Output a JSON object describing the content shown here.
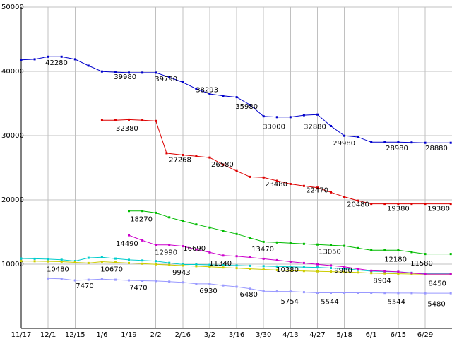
{
  "page": {
    "background": "#ffffff"
  },
  "chart_data": {
    "type": "line",
    "title": "",
    "xlabel": "",
    "ylabel": "",
    "ylim": [
      0,
      50000
    ],
    "grid": true,
    "grid_color": "#c0c0c0",
    "axis_color": "#000000",
    "label_color": "#000000",
    "y_ticks": [
      10000,
      20000,
      30000,
      40000,
      50000
    ],
    "y_tick_labels": [
      "10000",
      "20000",
      "30000",
      "40000",
      "50000"
    ],
    "x_labels": [
      "11/17",
      "12/1",
      "12/15",
      "1/6",
      "1/19",
      "2/2",
      "2/16",
      "3/2",
      "3/16",
      "3/30",
      "4/13",
      "4/27",
      "5/18",
      "6/1",
      "6/15",
      "6/29"
    ],
    "series": [
      {
        "name": "price-line-cyan",
        "color": "#00cccc",
        "points": [
          [
            0,
            10880
          ],
          [
            0.5,
            10830
          ],
          [
            1,
            10780
          ],
          [
            1.5,
            10680
          ],
          [
            2,
            10480
          ],
          [
            2.5,
            10980
          ],
          [
            3,
            11080
          ],
          [
            3.5,
            10870
          ],
          [
            4,
            10670
          ],
          [
            4.5,
            10570
          ],
          [
            5,
            10470
          ],
          [
            5.5,
            10200
          ],
          [
            6,
            9943
          ],
          [
            6.5,
            9943
          ],
          [
            7,
            9890
          ],
          [
            7.5,
            9840
          ],
          [
            8,
            9790
          ],
          [
            8.5,
            9740
          ],
          [
            9,
            9690
          ],
          [
            9.5,
            9640
          ],
          [
            10,
            9590
          ],
          [
            10.5,
            9540
          ],
          [
            11,
            9490
          ],
          [
            11.5,
            9400
          ],
          [
            12,
            9300
          ],
          [
            12.5,
            9100
          ],
          [
            13,
            8904
          ],
          [
            13.5,
            8850
          ],
          [
            14,
            8800
          ],
          [
            14.5,
            8650
          ],
          [
            15,
            8500
          ],
          [
            15.95,
            8500
          ]
        ]
      },
      {
        "name": "price-line-olive",
        "color": "#cccc00",
        "points": [
          [
            0,
            10480
          ],
          [
            0.5,
            10460
          ],
          [
            1,
            10430
          ],
          [
            1.5,
            10380
          ],
          [
            2,
            10280
          ],
          [
            2.5,
            10180
          ],
          [
            3,
            10380
          ],
          [
            3.5,
            10280
          ],
          [
            4,
            10180
          ],
          [
            4.5,
            10080
          ],
          [
            5,
            9980
          ],
          [
            5.5,
            9880
          ],
          [
            6,
            9780
          ],
          [
            6.5,
            9680
          ],
          [
            7,
            9580
          ],
          [
            7.5,
            9480
          ],
          [
            8,
            9380
          ],
          [
            8.5,
            9280
          ],
          [
            9,
            9180
          ],
          [
            9.5,
            9080
          ],
          [
            10,
            8980
          ],
          [
            10.5,
            8930
          ],
          [
            11,
            8880
          ],
          [
            11.5,
            8830
          ],
          [
            12,
            8780
          ],
          [
            12.5,
            8700
          ],
          [
            13,
            8600
          ],
          [
            13.5,
            8550
          ],
          [
            14,
            8500
          ],
          [
            14.5,
            8460
          ],
          [
            15,
            8430
          ],
          [
            15.95,
            8430
          ]
        ]
      },
      {
        "name": "price-line-lavender",
        "color": "#9999ff",
        "points": [
          [
            1,
            7770
          ],
          [
            1.5,
            7720
          ],
          [
            2,
            7470
          ],
          [
            2.5,
            7570
          ],
          [
            3,
            7670
          ],
          [
            3.5,
            7570
          ],
          [
            4,
            7470
          ],
          [
            4.5,
            7420
          ],
          [
            5,
            7370
          ],
          [
            5.5,
            7270
          ],
          [
            6,
            7170
          ],
          [
            6.5,
            6930
          ],
          [
            7,
            6930
          ],
          [
            7.5,
            6680
          ],
          [
            8,
            6480
          ],
          [
            8.5,
            6180
          ],
          [
            9,
            5800
          ],
          [
            9.5,
            5754
          ],
          [
            10,
            5754
          ],
          [
            10.5,
            5650
          ],
          [
            11,
            5544
          ],
          [
            11.5,
            5544
          ],
          [
            12,
            5544
          ],
          [
            12.5,
            5544
          ],
          [
            13,
            5544
          ],
          [
            13.5,
            5530
          ],
          [
            14,
            5510
          ],
          [
            14.5,
            5500
          ],
          [
            15,
            5480
          ],
          [
            15.95,
            5480
          ]
        ]
      },
      {
        "name": "price-line-magenta",
        "color": "#cc00cc",
        "points": [
          [
            4,
            14490
          ],
          [
            4.5,
            13690
          ],
          [
            5,
            12990
          ],
          [
            5.5,
            12990
          ],
          [
            6,
            12790
          ],
          [
            6.5,
            12290
          ],
          [
            7,
            11840
          ],
          [
            7.5,
            11340
          ],
          [
            8,
            11240
          ],
          [
            8.5,
            11040
          ],
          [
            9,
            10840
          ],
          [
            9.5,
            10610
          ],
          [
            10,
            10380
          ],
          [
            10.5,
            10180
          ],
          [
            11,
            9980
          ],
          [
            11.5,
            9780
          ],
          [
            12,
            9580
          ],
          [
            12.5,
            9280
          ],
          [
            13,
            8980
          ],
          [
            13.5,
            8900
          ],
          [
            14,
            8800
          ],
          [
            14.5,
            8620
          ],
          [
            15,
            8450
          ],
          [
            15.95,
            8450
          ]
        ]
      },
      {
        "name": "price-line-green",
        "color": "#00bb00",
        "points": [
          [
            4,
            18270
          ],
          [
            4.5,
            18270
          ],
          [
            5,
            17980
          ],
          [
            5.5,
            17280
          ],
          [
            6,
            16690
          ],
          [
            6.5,
            16190
          ],
          [
            7,
            15690
          ],
          [
            7.5,
            15190
          ],
          [
            8,
            14690
          ],
          [
            8.5,
            14090
          ],
          [
            9,
            13470
          ],
          [
            9.5,
            13370
          ],
          [
            10,
            13270
          ],
          [
            10.5,
            13150
          ],
          [
            11,
            13050
          ],
          [
            11.5,
            12950
          ],
          [
            12,
            12850
          ],
          [
            12.5,
            12500
          ],
          [
            13,
            12180
          ],
          [
            13.5,
            12180
          ],
          [
            14,
            12180
          ],
          [
            14.5,
            11880
          ],
          [
            15,
            11580
          ],
          [
            15.95,
            11580
          ]
        ]
      },
      {
        "name": "price-line-red",
        "color": "#dd0000",
        "points": [
          [
            3,
            32380
          ],
          [
            3.5,
            32380
          ],
          [
            4,
            32480
          ],
          [
            4.5,
            32380
          ],
          [
            5,
            32280
          ],
          [
            5.4,
            27268
          ],
          [
            6,
            26980
          ],
          [
            6.5,
            26780
          ],
          [
            7,
            26580
          ],
          [
            7.5,
            25480
          ],
          [
            8,
            24480
          ],
          [
            8.5,
            23580
          ],
          [
            9,
            23480
          ],
          [
            9.5,
            22970
          ],
          [
            10,
            22470
          ],
          [
            10.5,
            22170
          ],
          [
            11,
            21900
          ],
          [
            11.5,
            21180
          ],
          [
            12,
            20480
          ],
          [
            12.5,
            19880
          ],
          [
            13,
            19380
          ],
          [
            13.5,
            19380
          ],
          [
            14,
            19380
          ],
          [
            14.5,
            19380
          ],
          [
            15,
            19380
          ],
          [
            15.95,
            19380
          ]
        ]
      },
      {
        "name": "price-line-blue",
        "color": "#0000cc",
        "points": [
          [
            0,
            41780
          ],
          [
            0.5,
            41880
          ],
          [
            1,
            42280
          ],
          [
            1.5,
            42280
          ],
          [
            2,
            41880
          ],
          [
            2.5,
            40880
          ],
          [
            3,
            39980
          ],
          [
            3.5,
            39880
          ],
          [
            4,
            39790
          ],
          [
            4.5,
            39790
          ],
          [
            5,
            39790
          ],
          [
            5.5,
            39090
          ],
          [
            6,
            38293
          ],
          [
            6.5,
            37280
          ],
          [
            7,
            36480
          ],
          [
            7.5,
            36180
          ],
          [
            8,
            35980
          ],
          [
            8.5,
            34780
          ],
          [
            9,
            33000
          ],
          [
            9.5,
            32880
          ],
          [
            10,
            32880
          ],
          [
            10.5,
            33180
          ],
          [
            11,
            33280
          ],
          [
            11.5,
            31480
          ],
          [
            12,
            29980
          ],
          [
            12.5,
            29780
          ],
          [
            13,
            28980
          ],
          [
            13.5,
            28980
          ],
          [
            14,
            28980
          ],
          [
            14.5,
            28930
          ],
          [
            15,
            28880
          ],
          [
            15.95,
            28880
          ]
        ]
      }
    ],
    "point_labels": [
      {
        "text": "42280",
        "tick": 1.31,
        "value": 41300
      },
      {
        "text": "39980",
        "tick": 3.86,
        "value": 39100
      },
      {
        "text": "39790",
        "tick": 5.38,
        "value": 38800
      },
      {
        "text": "38293",
        "tick": 6.9,
        "value": 37100
      },
      {
        "text": "35980",
        "tick": 8.37,
        "value": 34500
      },
      {
        "text": "33000",
        "tick": 9.39,
        "value": 31400
      },
      {
        "text": "32880",
        "tick": 10.91,
        "value": 31400
      },
      {
        "text": "29980",
        "tick": 11.99,
        "value": 28800
      },
      {
        "text": "28980",
        "tick": 13.95,
        "value": 28000
      },
      {
        "text": "28880",
        "tick": 15.42,
        "value": 28000
      },
      {
        "text": "32380",
        "tick": 3.93,
        "value": 31100
      },
      {
        "text": "27268",
        "tick": 5.9,
        "value": 26200
      },
      {
        "text": "26580",
        "tick": 7.47,
        "value": 25500
      },
      {
        "text": "23480",
        "tick": 9.47,
        "value": 22400
      },
      {
        "text": "22470",
        "tick": 10.99,
        "value": 21500
      },
      {
        "text": "20480",
        "tick": 12.51,
        "value": 19300
      },
      {
        "text": "19380",
        "tick": 14.0,
        "value": 18600
      },
      {
        "text": "19380",
        "tick": 15.5,
        "value": 18600
      },
      {
        "text": "18270",
        "tick": 4.46,
        "value": 17000
      },
      {
        "text": "16690",
        "tick": 6.43,
        "value": 12400
      },
      {
        "text": "13470",
        "tick": 8.97,
        "value": 12300
      },
      {
        "text": "13050",
        "tick": 11.46,
        "value": 11900
      },
      {
        "text": "12180",
        "tick": 13.9,
        "value": 10700
      },
      {
        "text": "11580",
        "tick": 14.87,
        "value": 10100
      },
      {
        "text": "14490",
        "tick": 3.93,
        "value": 13200
      },
      {
        "text": "12990",
        "tick": 5.38,
        "value": 11800
      },
      {
        "text": "11340",
        "tick": 7.4,
        "value": 10100
      },
      {
        "text": "10380",
        "tick": 9.89,
        "value": 9100
      },
      {
        "text": "9980",
        "tick": 11.96,
        "value": 9000
      },
      {
        "text": "8904",
        "tick": 13.4,
        "value": 7400
      },
      {
        "text": "8450",
        "tick": 15.45,
        "value": 7000
      },
      {
        "text": "10480",
        "tick": 1.36,
        "value": 9200
      },
      {
        "text": "10670",
        "tick": 3.36,
        "value": 9200
      },
      {
        "text": "9943",
        "tick": 5.95,
        "value": 8700
      },
      {
        "text": "7470",
        "tick": 2.36,
        "value": 6600
      },
      {
        "text": "7470",
        "tick": 4.35,
        "value": 6300
      },
      {
        "text": "6930",
        "tick": 6.95,
        "value": 5800
      },
      {
        "text": "6480",
        "tick": 8.45,
        "value": 5300
      },
      {
        "text": "5754",
        "tick": 9.97,
        "value": 4200
      },
      {
        "text": "5544",
        "tick": 11.46,
        "value": 4100
      },
      {
        "text": "5544",
        "tick": 13.93,
        "value": 4100
      },
      {
        "text": "5480",
        "tick": 15.42,
        "value": 3800
      }
    ]
  }
}
